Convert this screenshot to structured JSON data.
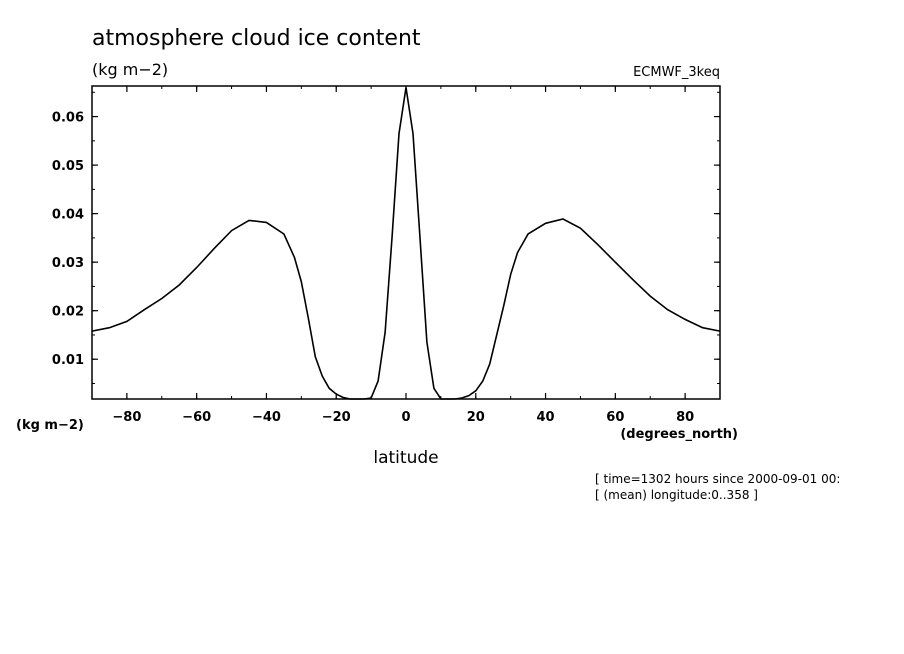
{
  "chart_data": {
    "type": "line",
    "title": "atmosphere cloud ice content",
    "subtitle": "(kg m−2)",
    "model_label": "ECMWF_3keq",
    "ylabel": "(kg m−2)",
    "xlabel": "latitude",
    "xunits": "(degrees_north)",
    "xlim": [
      -90,
      90
    ],
    "ylim": [
      0.0018,
      0.0663
    ],
    "xticks": [
      "−80",
      "−60",
      "−40",
      "−20",
      "0",
      "20",
      "40",
      "60",
      "80"
    ],
    "xtick_values": [
      -80,
      -60,
      -40,
      -20,
      0,
      20,
      40,
      60,
      80
    ],
    "yticks": [
      "0.01",
      "0.02",
      "0.03",
      "0.04",
      "0.05",
      "0.06"
    ],
    "ytick_values": [
      0.01,
      0.02,
      0.03,
      0.04,
      0.05,
      0.06
    ],
    "grid": false,
    "series": [
      {
        "x": [
          -90,
          -85,
          -80,
          -75,
          -70,
          -65,
          -60,
          -55,
          -50,
          -45,
          -40,
          -35,
          -32,
          -30,
          -28,
          -26,
          -24,
          -22,
          -20,
          -18,
          -16,
          -14,
          -12,
          -10,
          -8,
          -6,
          -4,
          -2,
          0,
          2,
          4,
          6,
          8,
          10,
          12,
          14,
          16,
          18,
          20,
          22,
          24,
          26,
          28,
          30,
          32,
          35,
          40,
          45,
          50,
          55,
          60,
          65,
          70,
          75,
          80,
          85,
          90
        ],
        "y": [
          0.0158,
          0.0165,
          0.0178,
          0.0202,
          0.0225,
          0.0253,
          0.0289,
          0.0328,
          0.0365,
          0.0386,
          0.0382,
          0.0358,
          0.031,
          0.026,
          0.0185,
          0.0105,
          0.0065,
          0.004,
          0.0028,
          0.0021,
          0.0018,
          0.0018,
          0.0018,
          0.002,
          0.0055,
          0.0155,
          0.035,
          0.0565,
          0.066,
          0.0565,
          0.035,
          0.0135,
          0.004,
          0.0018,
          0.0018,
          0.0018,
          0.002,
          0.0025,
          0.0035,
          0.0055,
          0.009,
          0.015,
          0.021,
          0.0275,
          0.032,
          0.0358,
          0.038,
          0.0389,
          0.037,
          0.0336,
          0.03,
          0.0264,
          0.023,
          0.0202,
          0.0182,
          0.0165,
          0.0158
        ]
      }
    ]
  },
  "footer": {
    "line1": "[ time=1302 hours since 2000-09-01 00:",
    "line2": "[ (mean) longitude:0..358 ]"
  }
}
